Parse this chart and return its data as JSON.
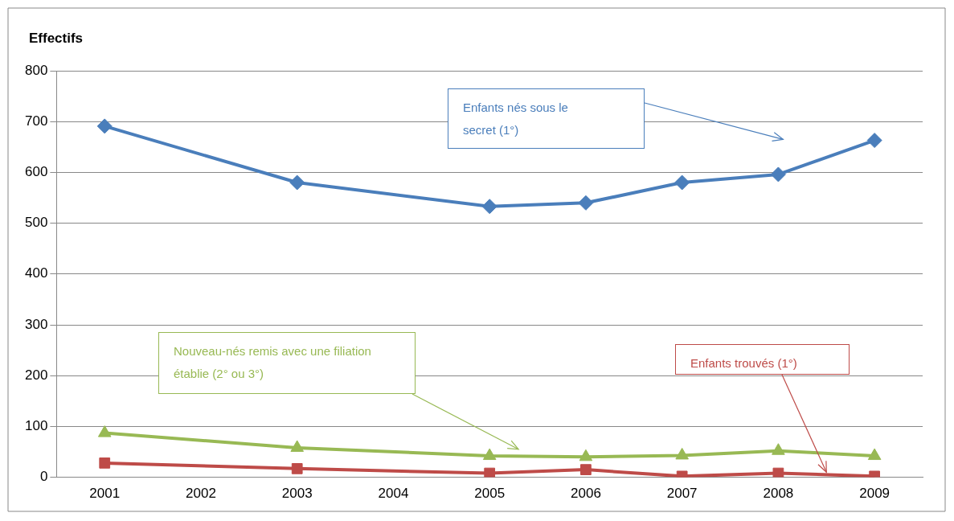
{
  "chart_data": {
    "type": "line",
    "ylabel": "Effectifs",
    "categories": [
      "2001",
      "2002",
      "2003",
      "2004",
      "2005",
      "2006",
      "2007",
      "2008",
      "2009"
    ],
    "series": [
      {
        "name": "Enfants nés sous le secret (1°)",
        "color": "#4a7ebb",
        "marker": "diamond",
        "values": [
          691,
          null,
          580,
          null,
          533,
          540,
          580,
          596,
          663
        ]
      },
      {
        "name": "Enfants trouvés (1°)",
        "color": "#be4b48",
        "marker": "square",
        "values": [
          28,
          null,
          17,
          null,
          8,
          15,
          2,
          8,
          2
        ]
      },
      {
        "name": "Nouveau-nés remis avec une filiation établie (2° ou 3°)",
        "color": "#98b954",
        "marker": "triangle",
        "values": [
          87,
          null,
          58,
          null,
          42,
          40,
          43,
          52,
          42
        ]
      }
    ],
    "ylim": [
      0,
      800
    ],
    "yticks": [
      0,
      100,
      200,
      300,
      400,
      500,
      600,
      700,
      800
    ],
    "grid": "y",
    "legend": false
  }
}
